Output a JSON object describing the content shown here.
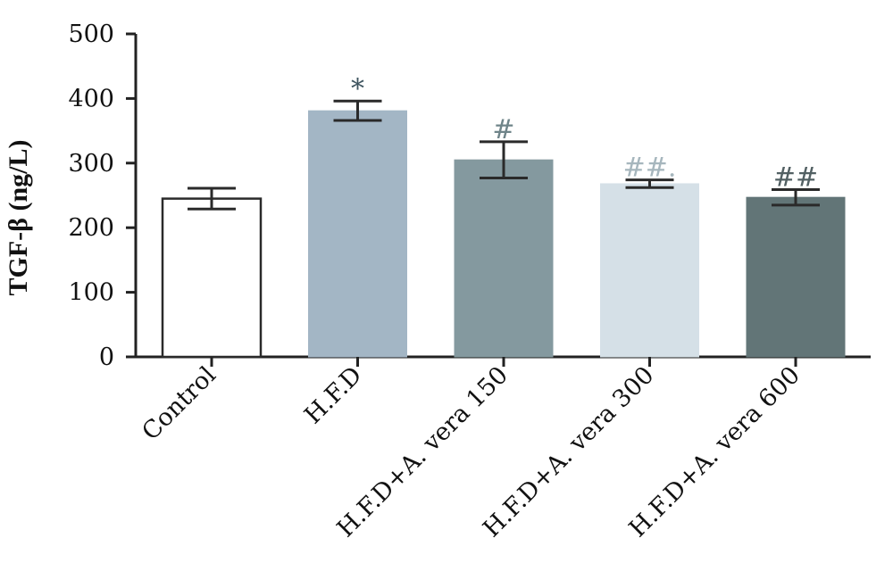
{
  "chart_data": {
    "type": "bar",
    "title": "",
    "xlabel": "",
    "ylabel": "TGF-β (ng/L)",
    "ylim": [
      0,
      500
    ],
    "yticks": [
      0,
      100,
      200,
      300,
      400,
      500
    ],
    "grid": false,
    "categories": [
      "Control",
      "H.F.D",
      "H.F.D+A. vera 150",
      "H.F.D+A. vera 300",
      "H.F.D+A. vera 600"
    ],
    "values": [
      245,
      381,
      305,
      268,
      247
    ],
    "errors": [
      16,
      15,
      28,
      6,
      12
    ],
    "annotations": [
      "",
      "*",
      "#",
      "##.",
      "##"
    ],
    "bar_colors": [
      "#ffffff",
      "#a3b6c5",
      "#84999f",
      "#d5e0e7",
      "#627577"
    ],
    "annotation_colors": [
      "#444444",
      "#3f5560",
      "#6f8489",
      "#a6b6bd",
      "#526063"
    ]
  }
}
